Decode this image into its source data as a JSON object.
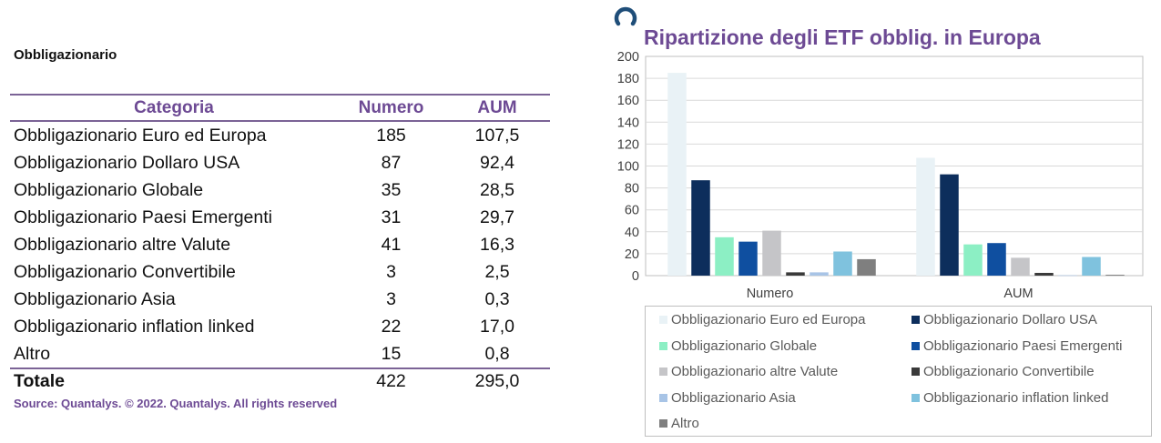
{
  "section_title": "Obbligazionario",
  "table": {
    "headers": [
      "Categoria",
      "Numero",
      "AUM"
    ],
    "rows": [
      [
        "Obbligazionario Euro ed Europa",
        "185",
        "107,5"
      ],
      [
        "Obbligazionario Dollaro USA",
        "87",
        "92,4"
      ],
      [
        "Obbligazionario Globale",
        "35",
        "28,5"
      ],
      [
        "Obbligazionario Paesi Emergenti",
        "31",
        "29,7"
      ],
      [
        "Obbligazionario altre Valute",
        "41",
        "16,3"
      ],
      [
        "Obbligazionario Convertibile",
        "3",
        "2,5"
      ],
      [
        "Obbligazionario Asia",
        "3",
        "0,3"
      ],
      [
        "Obbligazionario inflation linked",
        "22",
        "17,0"
      ],
      [
        "Altro",
        "15",
        "0,8"
      ]
    ],
    "total": [
      "Totale",
      "422",
      "295,0"
    ]
  },
  "source": "Source: Quantalys. © 2022. Quantalys. All rights reserved",
  "colors": {
    "accent": "#6d4a94",
    "logo": "#1f4e79"
  },
  "icons": {
    "logo": "quantalys-logo-icon"
  },
  "chart_data": {
    "type": "bar",
    "title": "Ripartizione degli ETF obblig. in Europa",
    "categories": [
      "Numero",
      "AUM"
    ],
    "ylim": [
      0,
      200
    ],
    "yticks": [
      0,
      20,
      40,
      60,
      80,
      100,
      120,
      140,
      160,
      180,
      200
    ],
    "grid": true,
    "legend_position": "bottom",
    "series": [
      {
        "name": "Obbligazionario Euro ed Europa",
        "values": [
          185,
          107.5
        ],
        "color": "#e9f2f6"
      },
      {
        "name": "Obbligazionario Dollaro USA",
        "values": [
          87,
          92.4
        ],
        "color": "#0d2e5c"
      },
      {
        "name": "Obbligazionario Globale",
        "values": [
          35,
          28.5
        ],
        "color": "#8cefc4"
      },
      {
        "name": "Obbligazionario Paesi Emergenti",
        "values": [
          31,
          29.7
        ],
        "color": "#0f4fa0"
      },
      {
        "name": "Obbligazionario altre Valute",
        "values": [
          41,
          16.3
        ],
        "color": "#c5c5c8"
      },
      {
        "name": "Obbligazionario Convertibile",
        "values": [
          3,
          2.5
        ],
        "color": "#3a3a3a"
      },
      {
        "name": "Obbligazionario Asia",
        "values": [
          3,
          0.3
        ],
        "color": "#a8c4e6"
      },
      {
        "name": "Obbligazionario inflation linked",
        "values": [
          22,
          17.0
        ],
        "color": "#7fc2de"
      },
      {
        "name": "Altro",
        "values": [
          15,
          0.8
        ],
        "color": "#7f7f7f"
      }
    ]
  }
}
